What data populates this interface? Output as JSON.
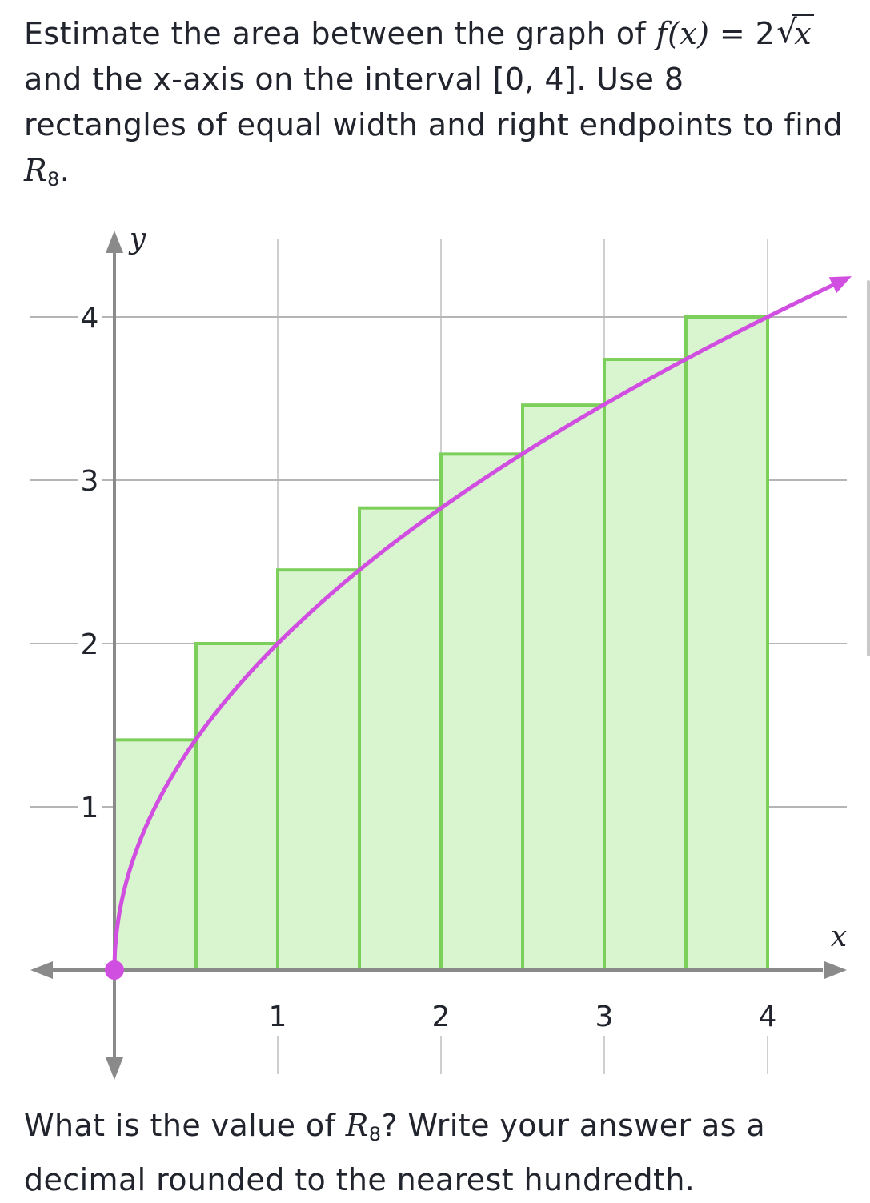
{
  "prompt": {
    "part1": "Estimate the area between the graph of ",
    "func_name": "f",
    "func_paren": "(x) =",
    "coef": "2",
    "radicand": "x",
    "part2": " and the x-axis on the interval [0, 4]. Use 8 rectangles of equal width and right endpoints to find ",
    "r_letter": "R",
    "r_sub": "8",
    "part3": "."
  },
  "question": {
    "part1": "What is the value of ",
    "r_letter": "R",
    "r_sub": "8",
    "part2": "? Write your answer as a decimal rounded to the nearest hundredth."
  },
  "chart_data": {
    "type": "area",
    "function": "2*sqrt(x)",
    "xlabel": "x",
    "ylabel": "y",
    "xlim": [
      0,
      4
    ],
    "ylim": [
      0,
      4
    ],
    "x_ticks": [
      1,
      2,
      3,
      4
    ],
    "y_ticks": [
      1,
      2,
      3,
      4
    ],
    "rectangles": [
      {
        "x0": 0.0,
        "x1": 0.5,
        "height": 1.41
      },
      {
        "x0": 0.5,
        "x1": 1.0,
        "height": 2.0
      },
      {
        "x0": 1.0,
        "x1": 1.5,
        "height": 2.45
      },
      {
        "x0": 1.5,
        "x1": 2.0,
        "height": 2.83
      },
      {
        "x0": 2.0,
        "x1": 2.5,
        "height": 3.16
      },
      {
        "x0": 2.5,
        "x1": 3.0,
        "height": 3.46
      },
      {
        "x0": 3.0,
        "x1": 3.5,
        "height": 3.74
      },
      {
        "x0": 3.5,
        "x1": 4.0,
        "height": 4.0
      }
    ],
    "grid": true,
    "colors": {
      "curve": "#d14fe0",
      "rect_fill": "#d9f5cf",
      "rect_stroke": "#7dcf5c",
      "axis": "#8a8a8a",
      "grid": "#b5b5b5"
    }
  }
}
